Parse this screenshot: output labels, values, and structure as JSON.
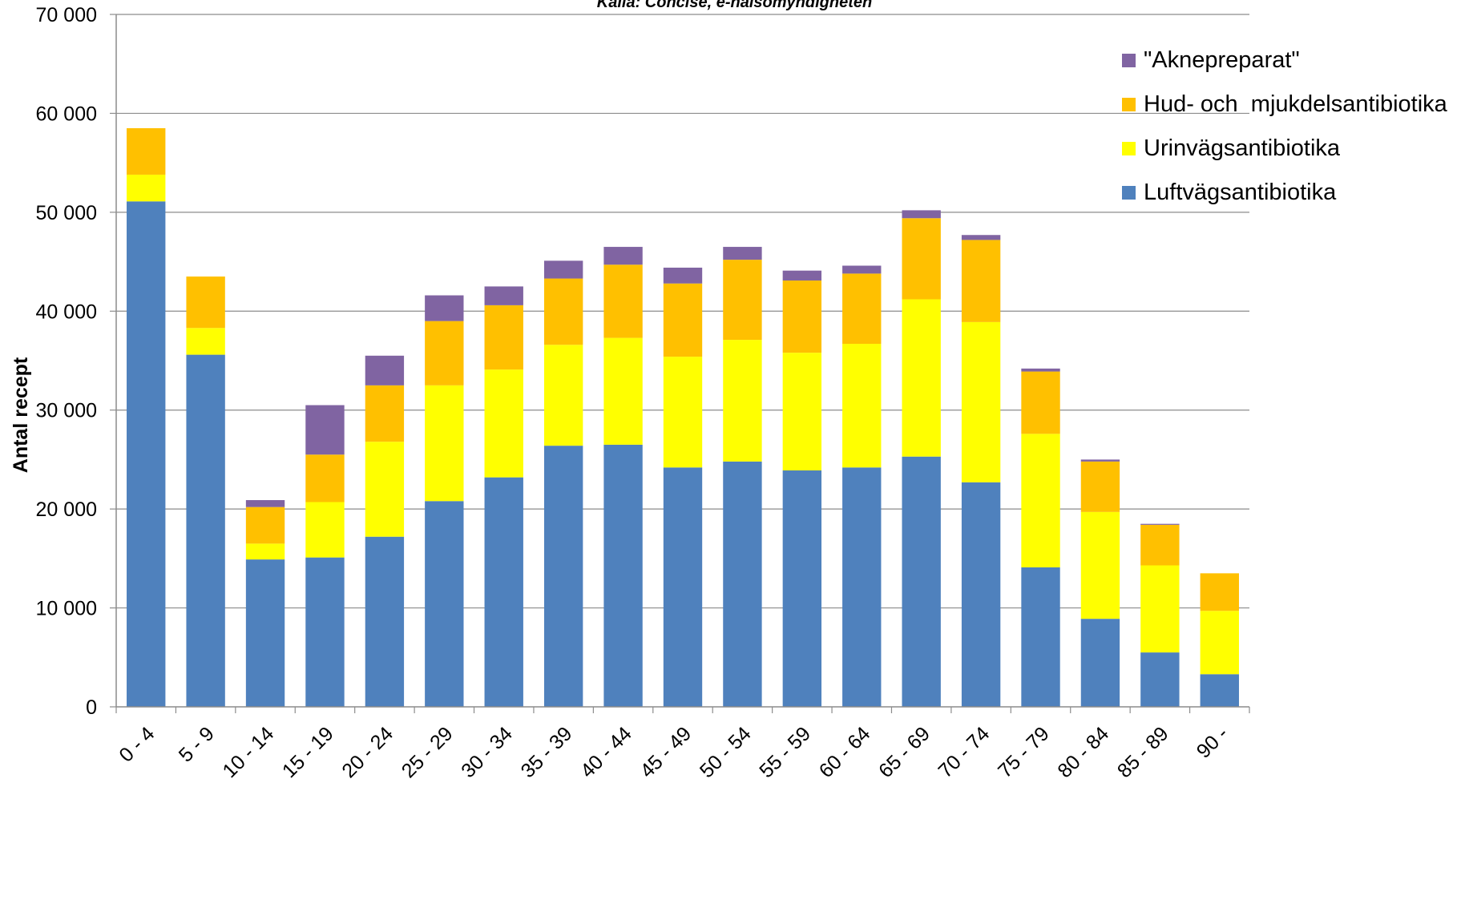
{
  "chart_data": {
    "type": "bar",
    "stacked": true,
    "source_note": "Källa: Concise, e-hälsomyndigheten",
    "title": "",
    "xlabel": "",
    "ylabel": "Antal recept",
    "ylim": [
      0,
      70000
    ],
    "yticks": [
      0,
      10000,
      20000,
      30000,
      40000,
      50000,
      60000,
      70000
    ],
    "ytick_labels": [
      "0",
      "10 000",
      "20 000",
      "30 000",
      "40 000",
      "50 000",
      "60 000",
      "70 000"
    ],
    "grid": true,
    "legend_position": "top-right",
    "categories": [
      "0 - 4",
      "5 - 9",
      "10 - 14",
      "15 - 19",
      "20 - 24",
      "25 - 29",
      "30 - 34",
      "35 - 39",
      "40 - 44",
      "45 - 49",
      "50 - 54",
      "55 - 59",
      "60 - 64",
      "65 - 69",
      "70 - 74",
      "75 - 79",
      "80 - 84",
      "85 - 89",
      "90 -"
    ],
    "series": [
      {
        "name": "Luftvägsantibiotika",
        "color": "#4F81BD",
        "values": [
          51100,
          35600,
          14900,
          15100,
          17200,
          20800,
          23200,
          26400,
          26500,
          24200,
          24800,
          23900,
          24200,
          25300,
          22700,
          14100,
          8900,
          5500,
          3300
        ]
      },
      {
        "name": "Urinvägsantibiotika",
        "color": "#FFFF00",
        "values": [
          2700,
          2700,
          1600,
          5600,
          9600,
          11700,
          10900,
          10200,
          10800,
          11200,
          12300,
          11900,
          12500,
          15900,
          16200,
          13500,
          10800,
          8800,
          6400
        ]
      },
      {
        "name": "Hud- och  mjukdelsantibiotika",
        "color": "#FFC000",
        "values": [
          4700,
          5200,
          3700,
          4800,
          5700,
          6500,
          6500,
          6700,
          7400,
          7400,
          8100,
          7300,
          7100,
          8200,
          8300,
          6300,
          5100,
          4100,
          3800
        ]
      },
      {
        "name": "\"Aknepreparat\"",
        "color": "#8064A2",
        "values": [
          0,
          0,
          700,
          5000,
          3000,
          2600,
          1900,
          1800,
          1800,
          1600,
          1300,
          1000,
          800,
          800,
          500,
          300,
          200,
          100,
          0
        ]
      }
    ]
  }
}
